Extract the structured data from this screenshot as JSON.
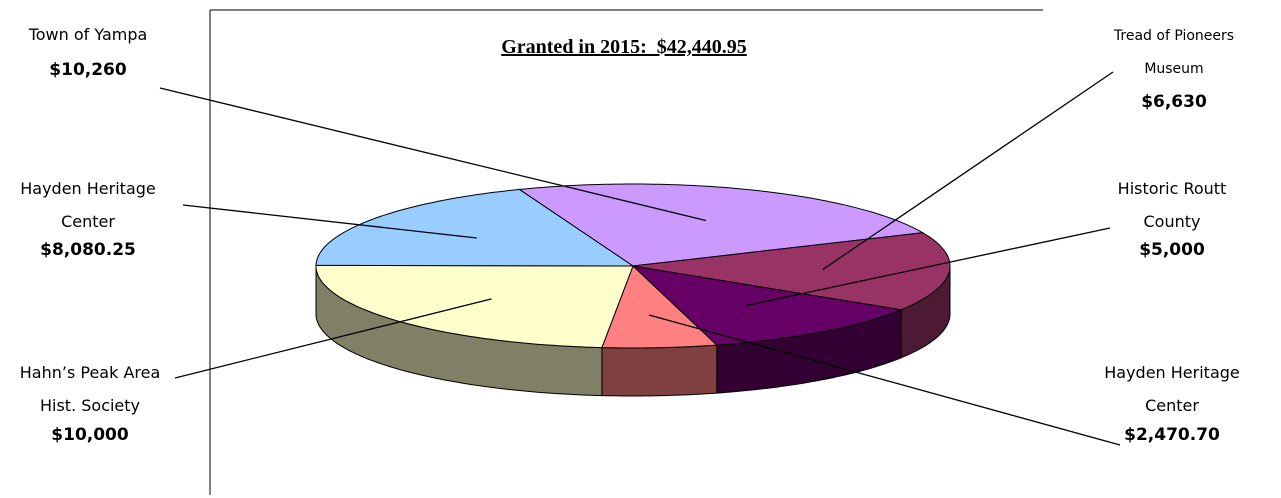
{
  "chart_data": {
    "type": "pie",
    "title": "Granted in 2015:  $42,440.95",
    "categories": [
      "Town of Yampa",
      "Tread of Pioneers Museum",
      "Historic Routt County",
      "Hayden Heritage Center",
      "Hahn’s Peak Area Hist. Society",
      "Hayden Heritage Center"
    ],
    "values": [
      10260,
      6630,
      5000,
      2470.7,
      10000,
      8080.25
    ],
    "value_labels": [
      "$10,260",
      "$6,630",
      "$5,000",
      "$2,470.70",
      "$10,000",
      "$8,080.25"
    ],
    "colors": [
      "#cc99ff",
      "#993366",
      "#660066",
      "#ff8080",
      "#ffffcc",
      "#99ccff"
    ]
  }
}
